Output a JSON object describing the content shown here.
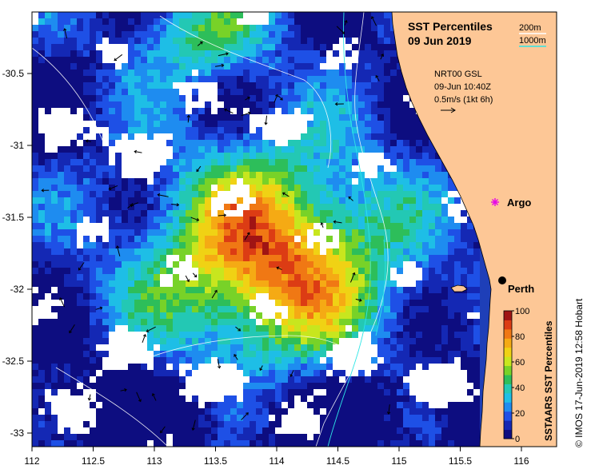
{
  "title": "SST Percentiles",
  "date": "09 Jun 2019",
  "contour_legend": {
    "c200": "200m",
    "c1000": "1000m",
    "c200_color": "#ffffff",
    "c1000_color": "#2ee6e6"
  },
  "current_legend": {
    "source": "NRT00 GSL",
    "time": "09-Jun 10:40Z",
    "scale": "0.5m/s (1kt 6h)"
  },
  "colorbar": {
    "title": "SSTAARS SST Percentiles",
    "ticks": [
      "100",
      "80",
      "60",
      "40",
      "20",
      "0"
    ],
    "colors": [
      "#0d0d80",
      "#1428b4",
      "#1e50e6",
      "#1e8cf0",
      "#1ebee6",
      "#23c8b4",
      "#2dbe5a",
      "#78d228",
      "#c8e61e",
      "#f0d214",
      "#f5aa14",
      "#f07814",
      "#dc3c14",
      "#a01414"
    ]
  },
  "x_ticks": [
    "112",
    "112.5",
    "113",
    "113.5",
    "114",
    "114.5",
    "115",
    "115.5",
    "116"
  ],
  "y_ticks": [
    "-30.5",
    "-31",
    "-31.5",
    "-32",
    "-32.5",
    "-33"
  ],
  "places": [
    {
      "name": "Argo",
      "marker": "magenta-star-icon"
    },
    {
      "name": "Perth",
      "marker": "black-dot-icon"
    }
  ],
  "credit": "© IMOS 17-Jun-2019 12:58 Hobart",
  "colors": {
    "land": "#fdc796",
    "cloud": "#ffffff",
    "frame": "#000000"
  }
}
